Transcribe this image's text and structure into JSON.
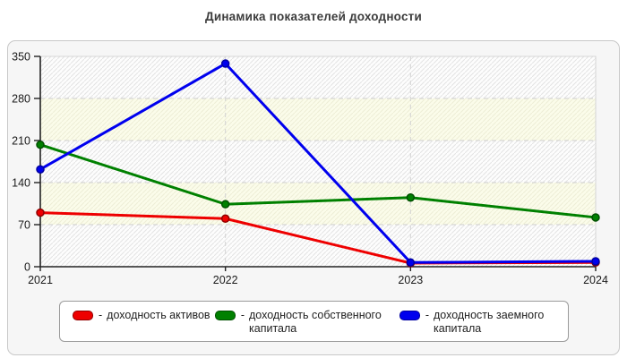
{
  "chart_data": {
    "type": "line",
    "title": "Динамика показателей доходности",
    "categories": [
      "2021",
      "2022",
      "2023",
      "2024"
    ],
    "series": [
      {
        "name": "доходность активов",
        "color": "#ee0000",
        "point_border": "#900000",
        "values": [
          90,
          80,
          6,
          7
        ]
      },
      {
        "name": "доходность собственного капитала",
        "color": "#008000",
        "point_border": "#004f00",
        "values": [
          203,
          104,
          115,
          82
        ]
      },
      {
        "name": "доходность заемного капитала",
        "color": "#0000ee",
        "point_border": "#0000a0",
        "values": [
          162,
          338,
          7,
          9
        ]
      }
    ],
    "xlabel": "",
    "ylabel": "",
    "ylim": [
      0,
      350
    ],
    "yticks": [
      0,
      70,
      140,
      210,
      280,
      350
    ],
    "grid": "dashed horizontal and vertical gridlines, alternating hatched background bands",
    "legend_position": "bottom"
  },
  "legend": {
    "dash": "-"
  }
}
